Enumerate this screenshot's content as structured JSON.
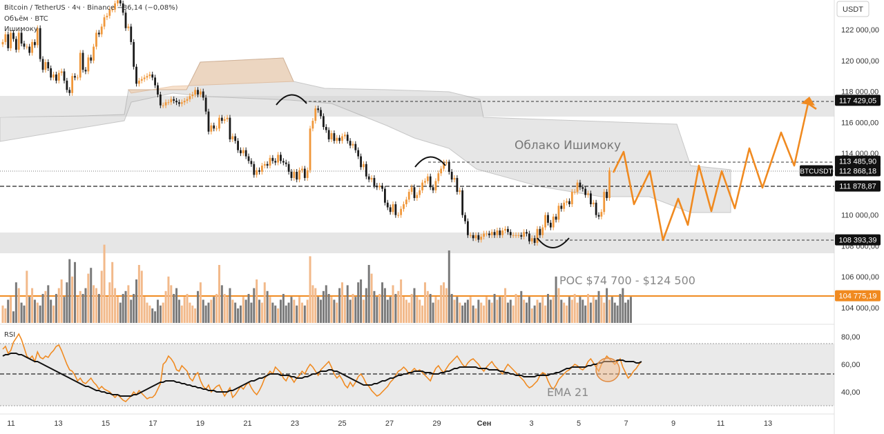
{
  "header": {
    "symbol": "Bitcoin / TetherUS · 4ч · Binance",
    "change": "−86,14 (−0,08%)",
    "volume_label": "Объём · BTC",
    "indicator_label": "Ишимоку"
  },
  "currency": "USDT",
  "rsi_label": "RSI",
  "colors": {
    "up": "#f0973a",
    "down": "#1a1a1a",
    "cloud_bear": "#9a9a9a",
    "cloud_bull": "#f2c9a3",
    "zone": "#c8c8c8",
    "poc": "#f08a20",
    "projection": "#f08a20"
  },
  "chart_data": [
    {
      "type": "candlestick",
      "title": "",
      "y_ticks": [
        "122 000,00",
        "120 000,00",
        "118 000,00",
        "116 000,00",
        "114 000,00",
        "110 000,00",
        "108 000,00",
        "106 000,00",
        "104 000,00"
      ],
      "x_ticks": [
        "11",
        "13",
        "15",
        "17",
        "19",
        "21",
        "23",
        "25",
        "27",
        "29",
        "Сен",
        "3",
        "5",
        "7",
        "9",
        "11",
        "13"
      ],
      "price_labels": [
        {
          "value": 117429.05,
          "text": "117 429,05"
        },
        {
          "value": 113485.9,
          "text": "113 485,90"
        },
        {
          "value": 112868.18,
          "text": "112 868,18",
          "tag": "BTCUSDT"
        },
        {
          "value": 111878.87,
          "text": "111 878,87"
        },
        {
          "value": 108393.39,
          "text": "108 393,39"
        },
        {
          "value": 104775.19,
          "text": "104 775,19"
        }
      ],
      "annotations": [
        "Облако Ишимоку",
        "POC $74 700 - $124 500"
      ],
      "closes": [
        121200,
        121700,
        120800,
        121800,
        121400,
        120700,
        121800,
        121100,
        120900,
        120900,
        120500,
        121200,
        121000,
        122100,
        120100,
        119400,
        119900,
        119500,
        118900,
        119100,
        118700,
        119200,
        119300,
        118700,
        118100,
        117900,
        119000,
        118900,
        118900,
        120500,
        119400,
        119300,
        120200,
        120000,
        120900,
        121800,
        121700,
        122200,
        122800,
        122900,
        123300,
        123300,
        123700,
        123900,
        123700,
        123100,
        122100,
        122200,
        121200,
        119600,
        118500,
        118700,
        118800,
        118900,
        119000,
        119100,
        118900,
        118400,
        117800,
        117100,
        117100,
        117300,
        117300,
        117500,
        117400,
        117300,
        117200,
        117300,
        117400,
        117500,
        117700,
        117800,
        118100,
        117800,
        118000,
        117600,
        116700,
        115400,
        115800,
        115600,
        115600,
        116300,
        116100,
        116200,
        116300,
        114900,
        115100,
        114800,
        114200,
        114000,
        114200,
        113800,
        113500,
        113300,
        112600,
        112900,
        112800,
        113200,
        113300,
        113200,
        113700,
        113500,
        113400,
        113900,
        113500,
        113400,
        113300,
        112800,
        112400,
        112800,
        112300,
        112900,
        113000,
        112400,
        112900,
        115600,
        116100,
        116900,
        116800,
        116400,
        115700,
        115500,
        114900,
        115300,
        114800,
        115000,
        114800,
        115100,
        115200,
        114800,
        114500,
        114600,
        114200,
        113800,
        113100,
        113300,
        112500,
        112300,
        112400,
        111900,
        111800,
        111900,
        111700,
        110800,
        110500,
        110200,
        110700,
        110000,
        110000,
        110400,
        110700,
        111000,
        111500,
        111800,
        111100,
        111300,
        111600,
        112100,
        112200,
        112500,
        111800,
        111600,
        112200,
        112700,
        113000,
        113400,
        113400,
        112800,
        112300,
        112400,
        111500,
        111600,
        110000,
        109600,
        108700,
        108700,
        108500,
        108700,
        108400,
        108600,
        108800,
        108800,
        108700,
        108900,
        108700,
        109000,
        108700,
        109000,
        109100,
        108900,
        108700,
        108700,
        108700,
        108700,
        108600,
        108900,
        108800,
        108300,
        108500,
        108200,
        109100,
        108700,
        109200,
        110000,
        109500,
        109200,
        109900,
        109700,
        110600,
        110400,
        110800,
        110900,
        110700,
        111500,
        111500,
        112100,
        111800,
        111700,
        111300,
        111400,
        110700,
        110800,
        110000,
        109900,
        110200,
        111500,
        111100,
        112900
      ]
    },
    {
      "type": "bar",
      "title": "Объём · BTC",
      "poc_price": 104775.19,
      "values": [
        6,
        5,
        8,
        9,
        4,
        14,
        12,
        7,
        6,
        18,
        9,
        12,
        8,
        7,
        6,
        10,
        11,
        13,
        8,
        6,
        10,
        12,
        15,
        9,
        14,
        22,
        16,
        21,
        9,
        11,
        10,
        12,
        17,
        19,
        13,
        12,
        10,
        18,
        27,
        9,
        14,
        21,
        12,
        9,
        7,
        10,
        11,
        13,
        8,
        10,
        15,
        20,
        18,
        9,
        7,
        6,
        5,
        4,
        8,
        6,
        7,
        11,
        16,
        13,
        10,
        12,
        8,
        6,
        9,
        10,
        7,
        6,
        5,
        11,
        14,
        8,
        6,
        7,
        8,
        9,
        10,
        20,
        13,
        10,
        9,
        12,
        8,
        7,
        5,
        6,
        9,
        8,
        10,
        7,
        12,
        15,
        8,
        7,
        14,
        11,
        9,
        7,
        6,
        5,
        8,
        10,
        6,
        7,
        9,
        8,
        6,
        9,
        7,
        6,
        8,
        23,
        13,
        12,
        9,
        8,
        11,
        13,
        10,
        9,
        8,
        7,
        12,
        14,
        9,
        13,
        8,
        10,
        9,
        14,
        15,
        8,
        12,
        20,
        17,
        11,
        9,
        10,
        14,
        12,
        8,
        9,
        13,
        10,
        11,
        15,
        9,
        8,
        7,
        10,
        12,
        9,
        8,
        6,
        14,
        11,
        10,
        7,
        9,
        8,
        13,
        14,
        12,
        25,
        10,
        8,
        9,
        7,
        6,
        7,
        8,
        9,
        6,
        5,
        8,
        7,
        6,
        9,
        8,
        7,
        10,
        8,
        9,
        9,
        12,
        7,
        8,
        6,
        10,
        9,
        11,
        8,
        7,
        9,
        5,
        6,
        8,
        7,
        9,
        6,
        10,
        8,
        9,
        16,
        12,
        8,
        7,
        6,
        9,
        8,
        10,
        7,
        9,
        8,
        6,
        10,
        7,
        9,
        8,
        11,
        9,
        7,
        12,
        8,
        9,
        7,
        6,
        10,
        12,
        7,
        8,
        9
      ]
    },
    {
      "type": "line",
      "title": "RSI",
      "y_ticks": [
        "80,00",
        "60,00",
        "40,00"
      ],
      "ylim": [
        20,
        86
      ],
      "bands": [
        70,
        50,
        30
      ],
      "annotations": [
        "EMA 21"
      ],
      "series": [
        {
          "values": [
            71,
            73,
            68,
            70,
            76,
            79,
            82,
            78,
            72,
            66,
            64,
            66,
            62,
            69,
            65,
            64,
            66,
            65,
            68,
            70,
            73,
            74,
            70,
            65,
            60,
            56,
            55,
            52,
            48,
            50,
            47,
            46,
            48,
            50,
            47,
            45,
            42,
            44,
            42,
            41,
            40,
            38,
            36,
            38,
            36,
            34,
            33,
            35,
            37,
            40,
            38,
            41,
            39,
            37,
            35,
            36,
            36,
            38,
            42,
            46,
            60,
            62,
            66,
            64,
            61,
            56,
            55,
            59,
            57,
            55,
            50,
            48,
            52,
            54,
            48,
            44,
            42,
            45,
            40,
            42,
            44,
            45,
            41,
            37,
            40,
            43,
            36,
            38,
            41,
            44,
            42,
            45,
            47,
            43,
            40,
            38,
            41,
            45,
            50,
            52,
            55,
            53,
            58,
            56,
            54,
            50,
            48,
            52,
            50,
            47,
            50,
            52,
            55,
            53,
            57,
            60,
            58,
            55,
            52,
            56,
            58,
            60,
            62,
            58,
            53,
            50,
            52,
            49,
            45,
            43,
            47,
            44,
            47,
            51,
            53,
            50,
            46,
            44,
            41,
            39,
            37,
            38,
            40,
            42,
            44,
            47,
            49,
            52,
            55,
            56,
            58,
            56,
            53,
            55,
            57,
            55,
            56,
            54,
            52,
            50,
            48,
            53,
            57,
            59,
            56,
            54,
            57,
            60,
            62,
            64,
            66,
            63,
            60,
            58,
            61,
            63,
            64,
            62,
            60,
            57,
            55,
            58,
            60,
            62,
            59,
            57,
            55,
            53,
            57,
            60,
            58,
            56,
            54,
            52,
            50,
            48,
            45,
            43,
            44,
            46,
            48,
            52,
            54,
            53,
            48,
            44,
            42,
            45,
            49,
            51,
            53,
            55,
            56,
            58,
            60,
            59,
            57,
            56,
            58,
            62,
            64,
            61,
            58,
            55,
            60,
            63,
            66,
            64,
            62,
            60,
            62,
            64,
            58,
            54,
            50,
            52,
            55,
            57,
            60,
            62
          ]
        },
        {
          "name": "EMA 21",
          "values": [
            66,
            67,
            67,
            68,
            68,
            68,
            67,
            67,
            66,
            65,
            64,
            63,
            62,
            62,
            61,
            60,
            59,
            58,
            57,
            56,
            55,
            54,
            53,
            52,
            51,
            50,
            49,
            48,
            47,
            46,
            45,
            44,
            44,
            43,
            42,
            41,
            41,
            40,
            40,
            39,
            39,
            38,
            38,
            38,
            37,
            37,
            37,
            37,
            37,
            38,
            38,
            39,
            40,
            41,
            42,
            43,
            44,
            45,
            46,
            47,
            47,
            48,
            48,
            48,
            48,
            47,
            47,
            46,
            46,
            45,
            45,
            44,
            44,
            43,
            43,
            42,
            42,
            41,
            41,
            41,
            40,
            40,
            40,
            40,
            40,
            41,
            41,
            42,
            43,
            44,
            45,
            46,
            47,
            48,
            48,
            49,
            50,
            50,
            51,
            52,
            53,
            53,
            53,
            53,
            52,
            52,
            52,
            52,
            51,
            51,
            50,
            50,
            50,
            51,
            51,
            52,
            53,
            53,
            54,
            55,
            55,
            55,
            56,
            56,
            55,
            55,
            54,
            53,
            52,
            51,
            50,
            49,
            48,
            47,
            46,
            45,
            45,
            45,
            45,
            46,
            46,
            47,
            48,
            48,
            49,
            50,
            50,
            51,
            52,
            52,
            53,
            53,
            54,
            54,
            55,
            55,
            55,
            55,
            54,
            54,
            54,
            53,
            53,
            53,
            54,
            54,
            55,
            55,
            56,
            57,
            57,
            58,
            58,
            58,
            58,
            58,
            58,
            58,
            57,
            57,
            57,
            57,
            56,
            56,
            56,
            56,
            55,
            55,
            54,
            54,
            53,
            53,
            52,
            52,
            52,
            51,
            51,
            51,
            51,
            51,
            52,
            52,
            52,
            52,
            52,
            53,
            53,
            54,
            54,
            55,
            56,
            57,
            57,
            58,
            58,
            58,
            58,
            58,
            58,
            59,
            59,
            60,
            60,
            61,
            61,
            62,
            62,
            62,
            62,
            62,
            63,
            63,
            63,
            62,
            62,
            62,
            62,
            61,
            61,
            62
          ]
        }
      ]
    }
  ]
}
